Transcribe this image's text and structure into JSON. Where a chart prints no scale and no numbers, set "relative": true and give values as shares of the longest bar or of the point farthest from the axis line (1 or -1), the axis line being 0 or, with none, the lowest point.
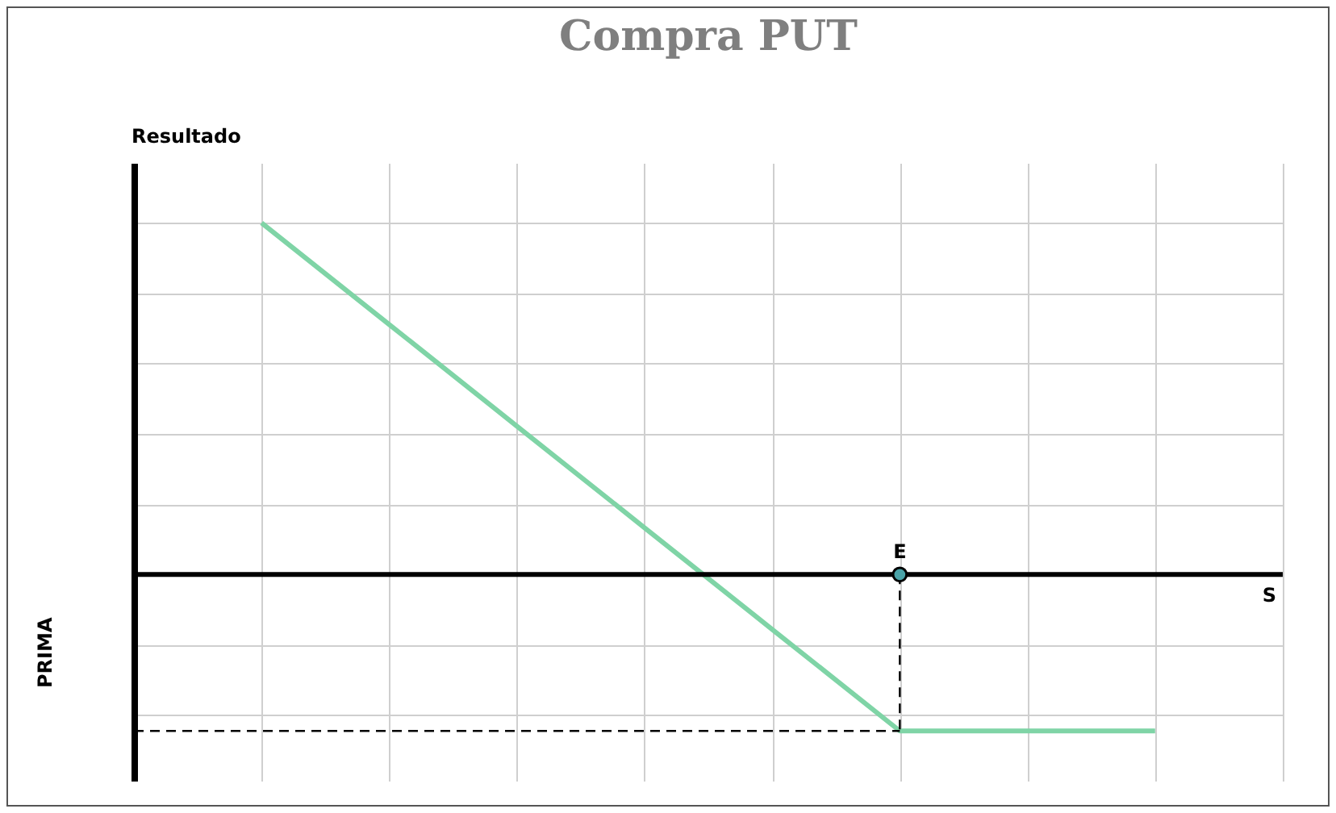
{
  "chart_data": {
    "type": "line",
    "title": "Compra PUT",
    "xlabel": "S",
    "ylabel": "Resultado",
    "relative": true,
    "marker": "none",
    "grid": true,
    "categories": [
      null,
      null,
      null,
      null,
      null,
      null,
      null,
      null,
      null,
      null
    ],
    "series": [
      {
        "color": "#7fd4a6",
        "values": [
          null,
          1,
          0.711,
          0.422,
          0.133,
          -0.156,
          -0.445,
          -0.445,
          -0.445,
          null
        ]
      }
    ],
    "annotations": [
      "PRIMA",
      "E"
    ]
  }
}
